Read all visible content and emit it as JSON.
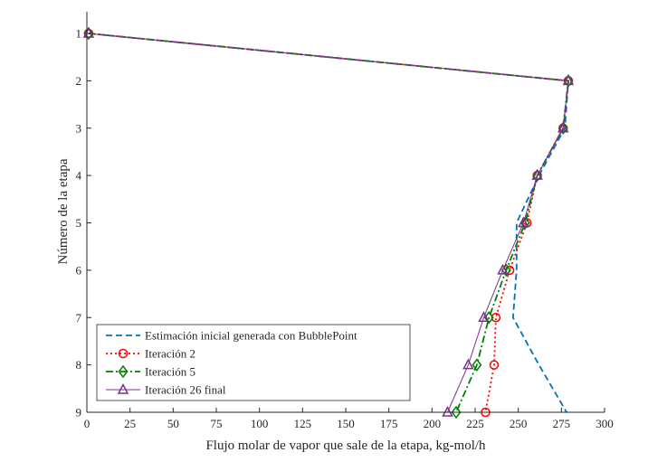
{
  "chart_data": {
    "type": "line",
    "title": "",
    "xlabel": "Flujo molar de vapor que sale de la etapa, kg-mol/h",
    "ylabel": "Número de la etapa",
    "xlim": [
      0,
      300
    ],
    "ylim": [
      1,
      9
    ],
    "y_reversed": true,
    "xticks": [
      0,
      25,
      50,
      75,
      100,
      125,
      150,
      175,
      200,
      225,
      250,
      275,
      300
    ],
    "yticks": [
      1,
      2,
      3,
      4,
      5,
      6,
      7,
      8,
      9
    ],
    "grid": false,
    "legend_position": "bottom-left",
    "y": [
      1,
      2,
      3,
      4,
      5,
      6,
      7,
      8,
      9
    ],
    "series": [
      {
        "name": "Estimación inicial generada con BubblePoint",
        "color": "#0072BD",
        "line_style": "dashed",
        "marker": "none",
        "x": [
          1,
          279,
          277,
          262,
          249,
          249,
          247,
          262,
          278
        ]
      },
      {
        "name": "Iteración 2",
        "color": "#FF0000",
        "line_style": "dotted",
        "marker": "circle",
        "x": [
          1,
          279,
          276,
          261,
          255,
          245,
          237,
          236,
          231
        ]
      },
      {
        "name": "Iteración 5",
        "color": "#008000",
        "line_style": "dashdot",
        "marker": "diamond",
        "x": [
          1,
          279,
          276,
          261,
          254,
          243,
          233,
          226,
          214
        ]
      },
      {
        "name": "Iteración 26 final",
        "color": "#7E2F8E",
        "line_style": "solid",
        "marker": "triangle",
        "x": [
          1,
          279,
          276,
          261,
          253,
          241,
          230,
          221,
          209
        ]
      }
    ]
  }
}
